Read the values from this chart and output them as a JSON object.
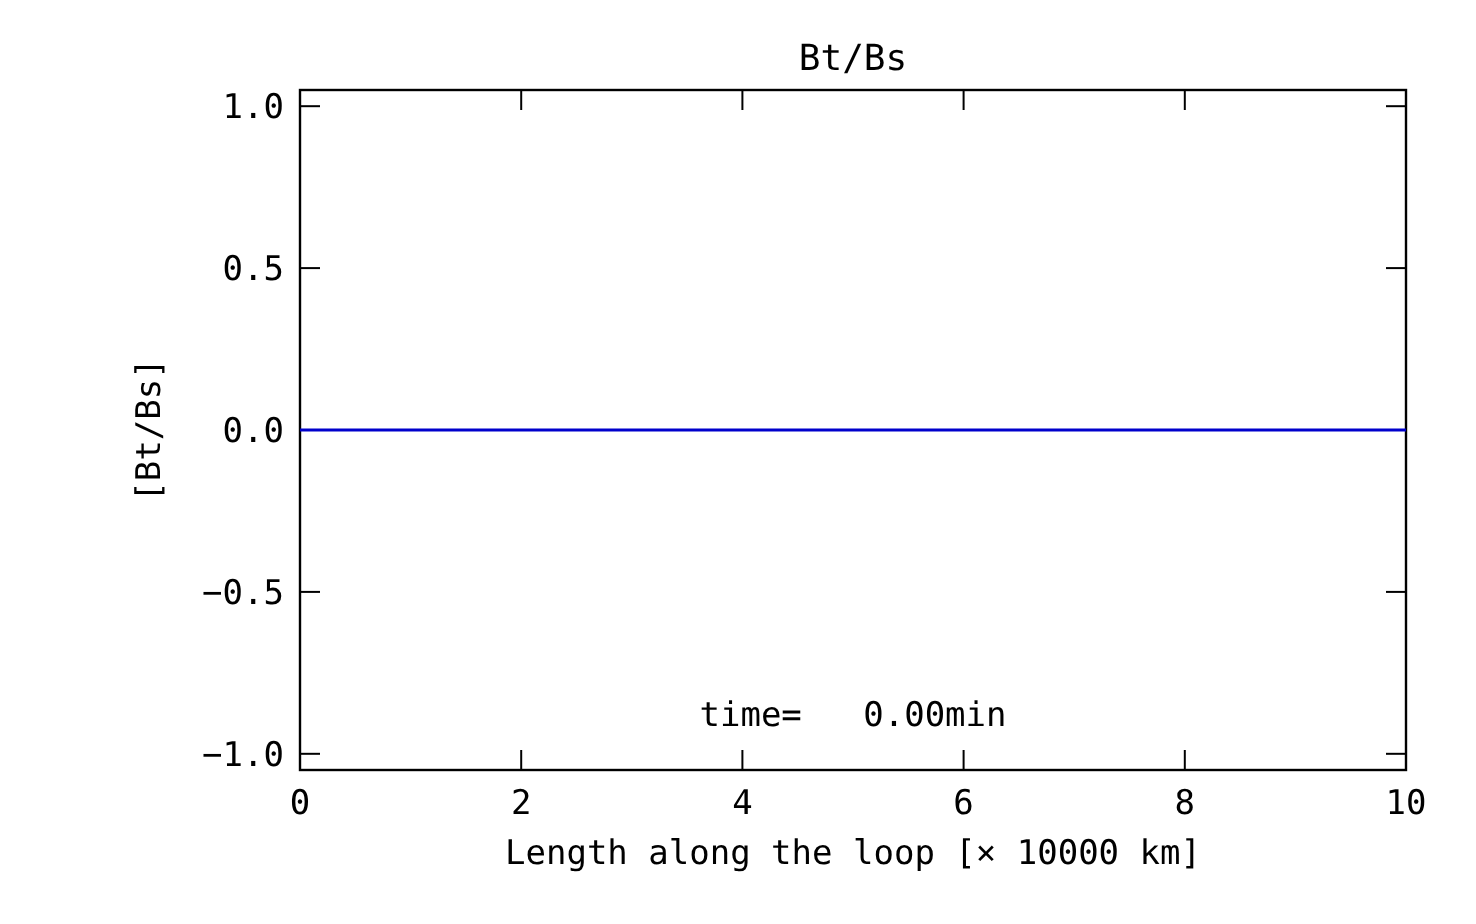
{
  "chart_data": {
    "type": "line",
    "title": "Bt/Bs",
    "xlabel": "Length along the loop [× 10000 km]",
    "ylabel": "[Bt/Bs]",
    "x": [
      0,
      10
    ],
    "series": [
      {
        "color": "#0000cc",
        "values": [
          0,
          0
        ]
      }
    ],
    "xlim": [
      0,
      10
    ],
    "xticks": [
      0,
      2,
      4,
      6,
      8,
      10
    ],
    "ylim": [
      -1.05,
      1.05
    ],
    "yticks": [
      {
        "value": -1,
        "label": "−1.0"
      },
      {
        "value": -0.5,
        "label": "−0.5"
      },
      {
        "value": 0,
        "label": "0.0"
      },
      {
        "value": 0.5,
        "label": "0.5"
      },
      {
        "value": 1,
        "label": "1.0"
      }
    ],
    "annotations": [
      "time=   0.00min"
    ],
    "grid": false
  }
}
